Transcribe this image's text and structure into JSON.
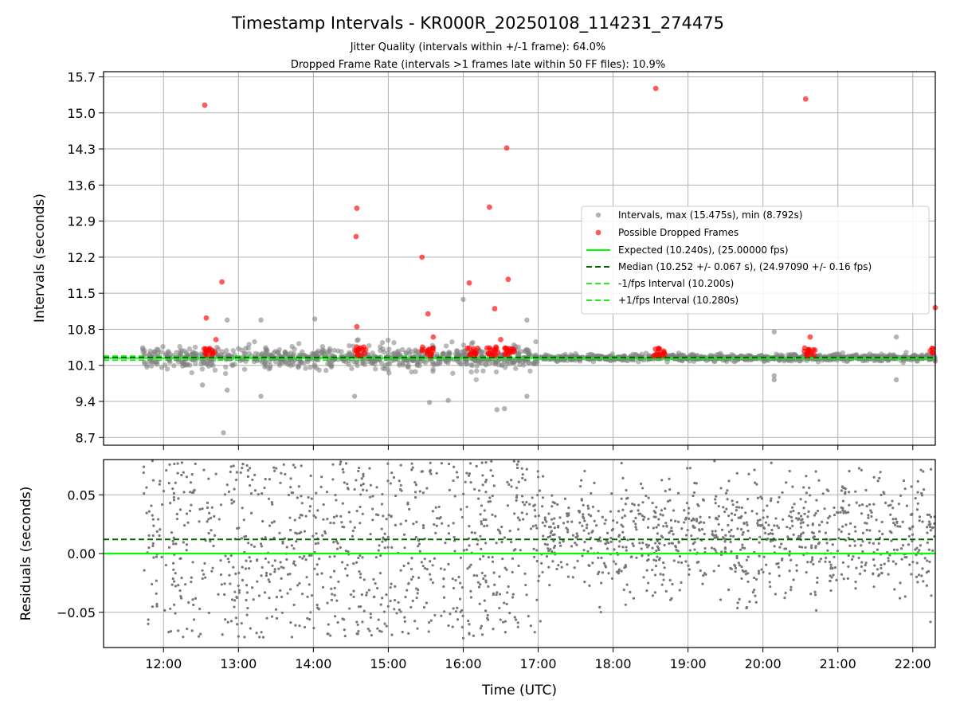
{
  "chart_data": [
    {
      "type": "scatter",
      "title": "Timestamp Intervals - KR000R_20250108_114231_274475",
      "subtitle_lines": [
        "Jitter Quality (intervals within +/-1 frame): 64.0%",
        "Dropped Frame Rate (intervals >1 frames late within 50 FF files): 10.9%"
      ],
      "xlabel": "",
      "ylabel": "Intervals (seconds)",
      "x_unit": "hours UTC",
      "xlim": [
        11.2,
        22.3
      ],
      "ylim": [
        8.55,
        15.8
      ],
      "yticks": [
        8.7,
        9.4,
        10.1,
        10.8,
        11.5,
        12.2,
        12.9,
        13.6,
        14.3,
        15.0,
        15.7
      ],
      "ytick_labels": [
        "8.7",
        "9.4",
        "10.1",
        "10.8",
        "11.5",
        "12.2",
        "12.9",
        "13.6",
        "14.3",
        "15.0",
        "15.7"
      ],
      "xticks": [
        12,
        13,
        14,
        15,
        16,
        17,
        18,
        19,
        20,
        21,
        22
      ],
      "grid": true,
      "legend_placement": "center-right",
      "legend": [
        "Intervals, max (15.475s), min (8.792s)",
        "Possible Dropped Frames",
        "Expected (10.240s), (25.00000 fps)",
        "Median (10.252 +/- 0.067 s), (24.97090 +/- 0.16 fps)",
        "-1/fps Interval (10.200s)",
        "+1/fps Interval (10.280s)"
      ],
      "reference_lines": {
        "expected": 10.24,
        "median": 10.252,
        "minus_one_frame": 10.2,
        "plus_one_frame": 10.28
      },
      "intervals_max": 15.475,
      "intervals_min": 8.792,
      "data_start_hour": 11.72,
      "data_end_hour": 22.3,
      "cluster_hours": [
        12.62,
        14.62,
        15.52,
        16.12,
        16.38,
        16.62,
        18.62,
        20.62,
        22.3
      ],
      "outliers_intervals": [
        {
          "x": 12.8,
          "y": 8.792
        },
        {
          "x": 12.52,
          "y": 9.72
        },
        {
          "x": 12.85,
          "y": 9.62
        },
        {
          "x": 13.3,
          "y": 9.5
        },
        {
          "x": 14.55,
          "y": 9.5
        },
        {
          "x": 15.55,
          "y": 9.38
        },
        {
          "x": 15.8,
          "y": 9.42
        },
        {
          "x": 16.45,
          "y": 9.24
        },
        {
          "x": 16.55,
          "y": 9.26
        },
        {
          "x": 16.85,
          "y": 9.5
        },
        {
          "x": 16.0,
          "y": 11.38
        },
        {
          "x": 12.85,
          "y": 10.98
        },
        {
          "x": 13.3,
          "y": 10.98
        },
        {
          "x": 14.02,
          "y": 11.0
        },
        {
          "x": 16.85,
          "y": 10.98
        },
        {
          "x": 20.15,
          "y": 10.75
        },
        {
          "x": 20.15,
          "y": 9.9
        },
        {
          "x": 20.15,
          "y": 9.82
        },
        {
          "x": 21.78,
          "y": 10.65
        },
        {
          "x": 21.78,
          "y": 9.82
        }
      ],
      "dropped_frames": [
        {
          "x": 12.55,
          "y": 15.15
        },
        {
          "x": 12.57,
          "y": 11.02
        },
        {
          "x": 12.78,
          "y": 11.72
        },
        {
          "x": 12.7,
          "y": 10.6
        },
        {
          "x": 14.58,
          "y": 13.15
        },
        {
          "x": 14.57,
          "y": 12.6
        },
        {
          "x": 14.58,
          "y": 10.85
        },
        {
          "x": 15.45,
          "y": 12.2
        },
        {
          "x": 15.53,
          "y": 11.1
        },
        {
          "x": 15.6,
          "y": 10.65
        },
        {
          "x": 16.08,
          "y": 11.7
        },
        {
          "x": 16.35,
          "y": 13.17
        },
        {
          "x": 16.42,
          "y": 11.2
        },
        {
          "x": 16.5,
          "y": 10.6
        },
        {
          "x": 16.58,
          "y": 14.32
        },
        {
          "x": 16.6,
          "y": 11.77
        },
        {
          "x": 18.57,
          "y": 15.475
        },
        {
          "x": 20.57,
          "y": 15.27
        },
        {
          "x": 20.63,
          "y": 10.65
        },
        {
          "x": 22.3,
          "y": 11.22
        }
      ]
    },
    {
      "type": "scatter",
      "title": "",
      "xlabel": "Time (UTC)",
      "ylabel": "Residuals (seconds)",
      "x_unit": "hours UTC",
      "xlim": [
        11.2,
        22.3
      ],
      "ylim": [
        -0.08,
        0.08
      ],
      "yticks": [
        -0.05,
        0.0,
        0.05
      ],
      "ytick_labels": [
        "−0.05",
        "0.00",
        "0.05"
      ],
      "xticks": [
        12,
        13,
        14,
        15,
        16,
        17,
        18,
        19,
        20,
        21,
        22
      ],
      "xtick_labels": [
        "12:00",
        "13:00",
        "14:00",
        "15:00",
        "16:00",
        "17:00",
        "18:00",
        "19:00",
        "20:00",
        "21:00",
        "22:00"
      ],
      "grid": true,
      "reference_lines": {
        "expected": 0.0,
        "median": 0.012
      },
      "data_start_hour": 11.72,
      "data_end_hour": 22.3
    }
  ],
  "colors": {
    "intervals": "#808080",
    "dropped": "#ff0000",
    "expected": "#00ff00",
    "median": "#006400",
    "fps_interval": "#22ee22",
    "grid": "#b0b0b0",
    "residual_points": "#777777"
  }
}
